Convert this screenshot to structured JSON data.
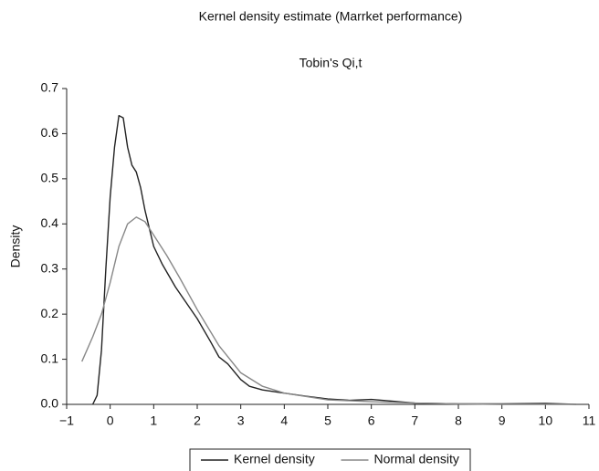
{
  "chart_data": {
    "type": "line",
    "title": "Kernel density estimate (Marrket performance)",
    "subtitle": "Tobin's Qi,t",
    "y_label": "Density",
    "xlim": [
      -1,
      11
    ],
    "ylim": [
      0,
      0.7
    ],
    "xticks": [
      {
        "value": -1,
        "label": "−1"
      },
      0,
      1,
      2,
      3,
      4,
      5,
      6,
      7,
      8,
      9,
      10,
      11
    ],
    "yticks": [
      {
        "value": 0,
        "label": "0.0"
      },
      0.1,
      0.2,
      0.3,
      0.4,
      0.5,
      0.6,
      0.7
    ],
    "grid": false,
    "legend": "bottom",
    "series": [
      {
        "name": "Kernel density",
        "color": "#222222",
        "x": [
          -0.4,
          -0.3,
          -0.2,
          -0.1,
          0.0,
          0.1,
          0.2,
          0.3,
          0.4,
          0.5,
          0.6,
          0.7,
          0.8,
          1.0,
          1.2,
          1.5,
          2.0,
          2.3,
          2.5,
          2.7,
          3.0,
          3.2,
          3.5,
          4.0,
          4.5,
          5.0,
          5.5,
          6.0,
          6.5,
          7.0,
          8.0,
          9.0,
          10.0,
          10.7
        ],
        "values": [
          0,
          0.02,
          0.12,
          0.3,
          0.46,
          0.57,
          0.64,
          0.635,
          0.57,
          0.53,
          0.515,
          0.48,
          0.43,
          0.35,
          0.31,
          0.26,
          0.19,
          0.14,
          0.105,
          0.09,
          0.055,
          0.04,
          0.032,
          0.025,
          0.018,
          0.012,
          0.009,
          0.011,
          0.007,
          0.003,
          0.001,
          0.001,
          0.002,
          0
        ]
      },
      {
        "name": "Normal density",
        "color": "#888888",
        "x": [
          -0.65,
          -0.4,
          -0.2,
          0.0,
          0.2,
          0.4,
          0.6,
          0.8,
          1.0,
          1.3,
          1.6,
          2.0,
          2.5,
          3.0,
          3.5,
          4.0,
          5.0,
          6.0,
          7.0,
          8.0,
          9.0,
          10.0,
          10.7
        ],
        "values": [
          0.095,
          0.15,
          0.2,
          0.27,
          0.35,
          0.4,
          0.415,
          0.405,
          0.375,
          0.33,
          0.28,
          0.21,
          0.13,
          0.07,
          0.04,
          0.025,
          0.01,
          0.006,
          0.003,
          0.001,
          0,
          0,
          0
        ]
      }
    ]
  }
}
